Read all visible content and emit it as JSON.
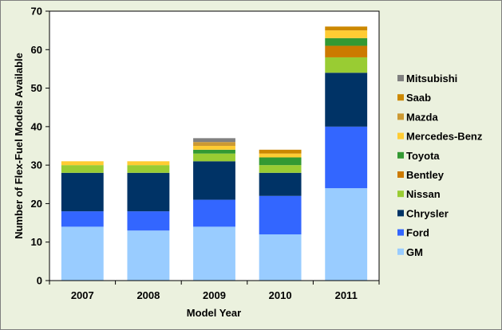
{
  "chart_data": {
    "type": "bar",
    "stacked": true,
    "xlabel": "Model Year",
    "ylabel": "Number of Flex-Fuel Models Available",
    "ylim": [
      0,
      70
    ],
    "yticks": [
      0,
      10,
      20,
      30,
      40,
      50,
      60,
      70
    ],
    "grid": false,
    "legend_position": "right",
    "categories": [
      "2007",
      "2008",
      "2009",
      "2010",
      "2011"
    ],
    "series": [
      {
        "name": "GM",
        "color": "#99ccff",
        "values": [
          14,
          13,
          14,
          12,
          24
        ]
      },
      {
        "name": "Ford",
        "color": "#3366ff",
        "values": [
          4,
          5,
          7,
          10,
          16
        ]
      },
      {
        "name": "Chrysler",
        "color": "#003366",
        "values": [
          10,
          10,
          10,
          6,
          14
        ]
      },
      {
        "name": "Nissan",
        "color": "#99cc33",
        "values": [
          2,
          2,
          2,
          2,
          4
        ]
      },
      {
        "name": "Bentley",
        "color": "#cc7a00",
        "values": [
          0,
          0,
          0,
          0,
          3
        ]
      },
      {
        "name": "Toyota",
        "color": "#339933",
        "values": [
          0,
          0,
          1,
          2,
          2
        ]
      },
      {
        "name": "Mercedes-Benz",
        "color": "#ffcc33",
        "values": [
          1,
          1,
          1,
          1,
          2
        ]
      },
      {
        "name": "Mazda",
        "color": "#cc9933",
        "values": [
          0,
          0,
          1,
          0,
          0
        ]
      },
      {
        "name": "Saab",
        "color": "#cc8800",
        "values": [
          0,
          0,
          0,
          1,
          1
        ]
      },
      {
        "name": "Mitsubishi",
        "color": "#808080",
        "values": [
          0,
          0,
          1,
          0,
          0
        ]
      }
    ],
    "legend_order": [
      "Mitsubishi",
      "Saab",
      "Mazda",
      "Mercedes-Benz",
      "Toyota",
      "Bentley",
      "Nissan",
      "Chrysler",
      "Ford",
      "GM"
    ]
  }
}
